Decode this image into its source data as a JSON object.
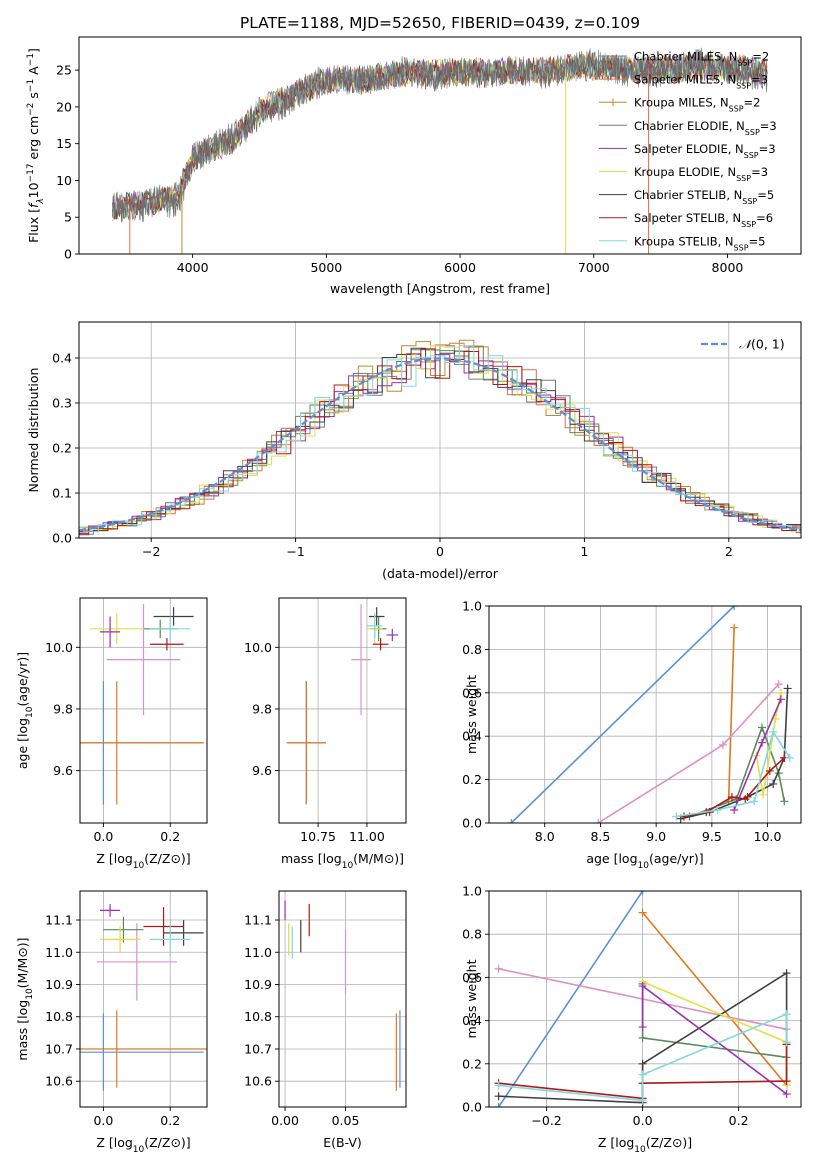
{
  "figure_title": "PLATE=1188, MJD=52650, FIBERID=0439, z=0.109",
  "legend_spectrum": [
    {
      "label": "Chabrier MILES, N",
      "sub": "SSP",
      "suffix": "=2",
      "color": "#808080",
      "marker": ""
    },
    {
      "label": "Salpeter MILES, N",
      "sub": "SSP",
      "suffix": "=3",
      "color": "#e07050",
      "marker": ""
    },
    {
      "label": "Kroupa MILES, N",
      "sub": "SSP",
      "suffix": "=2",
      "color": "#c08a30",
      "marker": "+"
    },
    {
      "label": "Chabrier ELODIE, N",
      "sub": "SSP",
      "suffix": "=3",
      "color": "#5a8a5a",
      "marker": ""
    },
    {
      "label": "Salpeter ELODIE, N",
      "sub": "SSP",
      "suffix": "=3",
      "color": "#9a30b0",
      "marker": ""
    },
    {
      "label": "Kroupa ELODIE, N",
      "sub": "SSP",
      "suffix": "=3",
      "color": "#e0e040",
      "marker": ""
    },
    {
      "label": "Chabrier STELIB, N",
      "sub": "SSP",
      "suffix": "=5",
      "color": "#404040",
      "marker": ""
    },
    {
      "label": "Salpeter STELIB, N",
      "sub": "SSP",
      "suffix": "=6",
      "color": "#b01818",
      "marker": ""
    },
    {
      "label": "Kroupa STELIB, N",
      "sub": "SSP",
      "suffix": "=5",
      "color": "#80d8e0",
      "marker": ""
    }
  ],
  "legend_hist": {
    "label": "N(0,1)",
    "color": "#5b8fd9"
  },
  "chart_data": [
    {
      "id": "spectrum",
      "type": "line",
      "title": "PLATE=1188, MJD=52650, FIBERID=0439, z=0.109",
      "xlabel": "wavelength [Angstrom, rest frame]",
      "ylabel": "Flux [f_λ 10^-17 erg cm^-2 s^-1 A^-1]",
      "xlim": [
        3150,
        8550
      ],
      "ylim": [
        0,
        29.5
      ],
      "xticks": [
        4000,
        5000,
        6000,
        7000,
        8000
      ],
      "yticks": [
        0,
        5,
        10,
        15,
        20,
        25
      ],
      "grid": false,
      "legend_position": "right",
      "spectrum_knots": [
        [
          3400,
          6.5
        ],
        [
          3600,
          6.2
        ],
        [
          3750,
          7.5
        ],
        [
          3900,
          6.5
        ],
        [
          4000,
          13
        ],
        [
          4200,
          15
        ],
        [
          4400,
          17
        ],
        [
          4500,
          19
        ],
        [
          4700,
          20.5
        ],
        [
          4800,
          22
        ],
        [
          5000,
          24
        ],
        [
          5200,
          23.5
        ],
        [
          5400,
          24
        ],
        [
          5600,
          25
        ],
        [
          5800,
          24
        ],
        [
          6000,
          25
        ],
        [
          6200,
          24.5
        ],
        [
          6400,
          25
        ],
        [
          6600,
          24.5
        ],
        [
          6800,
          25
        ],
        [
          7000,
          26
        ],
        [
          7200,
          25
        ],
        [
          7400,
          24.5
        ],
        [
          7600,
          25
        ],
        [
          7800,
          26
        ],
        [
          8000,
          25
        ],
        [
          8300,
          24
        ]
      ],
      "model_knots": [
        [
          3400,
          6.3
        ],
        [
          3500,
          6.5
        ],
        [
          3650,
          6.9
        ],
        [
          3800,
          7.3
        ],
        [
          3900,
          8.5
        ],
        [
          4000,
          13
        ],
        [
          4300,
          15.5
        ],
        [
          4500,
          19.5
        ],
        [
          4800,
          22
        ],
        [
          5000,
          23.5
        ],
        [
          5300,
          23.8
        ],
        [
          5600,
          24.6
        ],
        [
          5900,
          24.6
        ],
        [
          6200,
          24.8
        ],
        [
          6500,
          24.8
        ],
        [
          6800,
          25.2
        ],
        [
          7000,
          25.5
        ],
        [
          7300,
          25.1
        ],
        [
          7600,
          25.2
        ],
        [
          8000,
          25.4
        ],
        [
          8300,
          24.8
        ]
      ],
      "dropouts": [
        {
          "x": 3530,
          "color": "#e07050"
        },
        {
          "x": 3920,
          "color": "#c08a30"
        },
        {
          "x": 6790,
          "color": "#e0e040"
        },
        {
          "x": 7410,
          "color": "#e07050"
        }
      ]
    },
    {
      "id": "residual_hist",
      "type": "step",
      "xlabel": "(data-model)/error",
      "ylabel": "Normed distribution",
      "xlim": [
        -2.5,
        2.5
      ],
      "ylim": [
        0,
        0.48
      ],
      "xticks": [
        -2,
        -1,
        0,
        1,
        2
      ],
      "yticks": [
        0.0,
        0.1,
        0.2,
        0.3,
        0.4
      ],
      "grid": true,
      "legend_position": "upper right",
      "bin_width": 0.1,
      "reference_curve": "N(0,1)"
    },
    {
      "id": "age_vs_Z",
      "type": "errorbar",
      "xlabel": "Z [log10(Z/Z⊙)]",
      "ylabel": "age [log10(age/yr)]",
      "xlim": [
        -0.07,
        0.31
      ],
      "ylim": [
        9.43,
        10.16
      ],
      "xticks": [
        0.0,
        0.2
      ],
      "yticks": [
        9.6,
        9.8,
        10.0
      ],
      "grid": true,
      "points": [
        {
          "x": 0.0,
          "y": 9.69,
          "xerr": 0.3,
          "yerr": 0.2,
          "color": "#5b8fd9"
        },
        {
          "x": 0.04,
          "y": 9.69,
          "xerr": 0.26,
          "yerr": 0.2,
          "color": "#e07820"
        },
        {
          "x": 0.17,
          "y": 10.06,
          "xerr": 0.05,
          "yerr": 0.03,
          "color": "#5a8a5a"
        },
        {
          "x": 0.12,
          "y": 9.96,
          "xerr": 0.11,
          "yerr": 0.18,
          "color": "#e090c0"
        },
        {
          "x": 0.21,
          "y": 10.1,
          "xerr": 0.06,
          "yerr": 0.03,
          "color": "#404040"
        },
        {
          "x": 0.04,
          "y": 10.06,
          "xerr": 0.08,
          "yerr": 0.05,
          "color": "#e0e040"
        },
        {
          "x": 0.02,
          "y": 10.05,
          "xerr": 0.03,
          "yerr": 0.05,
          "color": "#9a30b0"
        },
        {
          "x": 0.19,
          "y": 10.01,
          "xerr": 0.05,
          "yerr": 0.02,
          "color": "#b01818"
        },
        {
          "x": 0.2,
          "y": 10.06,
          "xerr": 0.06,
          "yerr": 0.04,
          "color": "#80d8e0"
        }
      ]
    },
    {
      "id": "age_vs_mass",
      "type": "errorbar",
      "xlabel": "mass [log10(M/M⊙)]",
      "ylabel": "",
      "xlim": [
        10.55,
        11.2
      ],
      "ylim": [
        9.43,
        10.16
      ],
      "xticks": [
        10.75,
        11.0
      ],
      "yticks": [
        9.6,
        9.8,
        10.0
      ],
      "grid": true,
      "points": [
        {
          "x": 10.69,
          "y": 9.69,
          "xerr": 0.1,
          "yerr": 0.2,
          "color": "#5b8fd9"
        },
        {
          "x": 10.69,
          "y": 9.69,
          "xerr": 0.1,
          "yerr": 0.2,
          "color": "#e07820"
        },
        {
          "x": 10.97,
          "y": 9.96,
          "xerr": 0.05,
          "yerr": 0.18,
          "color": "#e090c0"
        },
        {
          "x": 11.06,
          "y": 10.06,
          "xerr": 0.04,
          "yerr": 0.04,
          "color": "#5a8a5a"
        },
        {
          "x": 11.05,
          "y": 10.1,
          "xerr": 0.04,
          "yerr": 0.03,
          "color": "#404040"
        },
        {
          "x": 11.04,
          "y": 10.06,
          "xerr": 0.04,
          "yerr": 0.05,
          "color": "#e0e040"
        },
        {
          "x": 11.13,
          "y": 10.04,
          "xerr": 0.03,
          "yerr": 0.02,
          "color": "#9a30b0"
        },
        {
          "x": 11.07,
          "y": 10.01,
          "xerr": 0.04,
          "yerr": 0.02,
          "color": "#b01818"
        },
        {
          "x": 11.04,
          "y": 10.07,
          "xerr": 0.04,
          "yerr": 0.04,
          "color": "#80d8e0"
        }
      ]
    },
    {
      "id": "mass_weight_vs_age",
      "type": "line",
      "xlabel": "age [log10(age/yr)]",
      "ylabel": "mass weight",
      "xlim": [
        7.5,
        10.3
      ],
      "ylim": [
        0,
        1
      ],
      "xticks": [
        8.0,
        8.5,
        9.0,
        9.5,
        10.0
      ],
      "yticks": [
        0.0,
        0.2,
        0.4,
        0.6,
        0.8,
        1.0
      ],
      "grid": true,
      "series": [
        {
          "color": "#5b8fd9",
          "x": [
            7.7,
            9.7
          ],
          "y": [
            0.0,
            1.0
          ]
        },
        {
          "color": "#e07820",
          "x": [
            9.65,
            9.7
          ],
          "y": [
            0.1,
            0.9
          ]
        },
        {
          "color": "#e090c0",
          "x": [
            8.48,
            9.6,
            10.1
          ],
          "y": [
            0.0,
            0.36,
            0.64
          ]
        },
        {
          "color": "#5a8a5a",
          "x": [
            9.3,
            9.72,
            9.95,
            10.1,
            10.15
          ],
          "y": [
            0.03,
            0.11,
            0.44,
            0.23,
            0.1
          ]
        },
        {
          "color": "#404040",
          "x": [
            9.22,
            9.48,
            9.82,
            10.05,
            10.15,
            10.18
          ],
          "y": [
            0.02,
            0.05,
            0.12,
            0.18,
            0.3,
            0.62
          ]
        },
        {
          "color": "#e0e040",
          "x": [
            9.9,
            9.96,
            10.07,
            10.12
          ],
          "y": [
            0.31,
            0.13,
            0.48,
            0.6
          ]
        },
        {
          "color": "#9a30b0",
          "x": [
            9.7,
            9.95,
            10.12
          ],
          "y": [
            0.06,
            0.37,
            0.57
          ]
        },
        {
          "color": "#b01818",
          "x": [
            9.25,
            9.45,
            9.68,
            9.8,
            10.02,
            10.15
          ],
          "y": [
            0.03,
            0.05,
            0.12,
            0.11,
            0.24,
            0.3
          ]
        },
        {
          "color": "#80d8e0",
          "x": [
            9.18,
            9.55,
            9.88,
            10.05,
            10.2
          ],
          "y": [
            0.03,
            0.06,
            0.1,
            0.42,
            0.3
          ]
        }
      ]
    },
    {
      "id": "mass_vs_Z",
      "type": "errorbar",
      "xlabel": "Z [log10(Z/Z⊙)]",
      "ylabel": "mass [log10(M/M⊙)]",
      "xlim": [
        -0.07,
        0.31
      ],
      "ylim": [
        10.52,
        11.19
      ],
      "xticks": [
        0.0,
        0.2
      ],
      "yticks": [
        10.6,
        10.7,
        10.8,
        10.9,
        11.0,
        11.1
      ],
      "grid": true,
      "points": [
        {
          "x": 0.0,
          "y": 10.69,
          "xerr": 0.3,
          "yerr": 0.12,
          "color": "#5b8fd9"
        },
        {
          "x": 0.04,
          "y": 10.7,
          "xerr": 0.27,
          "yerr": 0.12,
          "color": "#e07820"
        },
        {
          "x": 0.02,
          "y": 11.13,
          "xerr": 0.03,
          "yerr": 0.02,
          "color": "#9a30b0"
        },
        {
          "x": 0.1,
          "y": 10.97,
          "xerr": 0.12,
          "yerr": 0.12,
          "color": "#e090c0"
        },
        {
          "x": 0.06,
          "y": 11.07,
          "xerr": 0.06,
          "yerr": 0.04,
          "color": "#5a8a5a"
        },
        {
          "x": 0.05,
          "y": 11.04,
          "xerr": 0.06,
          "yerr": 0.04,
          "color": "#e0e040"
        },
        {
          "x": 0.24,
          "y": 11.06,
          "xerr": 0.06,
          "yerr": 0.04,
          "color": "#404040"
        },
        {
          "x": 0.18,
          "y": 11.08,
          "xerr": 0.06,
          "yerr": 0.06,
          "color": "#b01818"
        },
        {
          "x": 0.2,
          "y": 11.04,
          "xerr": 0.06,
          "yerr": 0.05,
          "color": "#80d8e0"
        }
      ]
    },
    {
      "id": "mass_vs_ebv",
      "type": "errorbar",
      "xlabel": "E(B-V)",
      "ylabel": "",
      "xlim": [
        -0.005,
        0.1
      ],
      "ylim": [
        10.52,
        11.19
      ],
      "xticks": [
        0.0,
        0.05
      ],
      "yticks": [
        10.6,
        10.7,
        10.8,
        10.9,
        11.0,
        11.1
      ],
      "grid": true,
      "points": [
        {
          "x": 0.095,
          "y": 10.7,
          "xerr": 0,
          "yerr": 0.12,
          "color": "#5b8fd9"
        },
        {
          "x": 0.092,
          "y": 10.69,
          "xerr": 0,
          "yerr": 0.12,
          "color": "#e07820"
        },
        {
          "x": 0.05,
          "y": 10.97,
          "xerr": 0,
          "yerr": 0.1,
          "color": "#e090c0"
        },
        {
          "x": 0.0,
          "y": 11.13,
          "xerr": 0,
          "yerr": 0.03,
          "color": "#9a30b0"
        },
        {
          "x": 0.02,
          "y": 11.1,
          "xerr": 0,
          "yerr": 0.05,
          "color": "#b01818"
        },
        {
          "x": 0.013,
          "y": 11.05,
          "xerr": 0,
          "yerr": 0.05,
          "color": "#404040"
        },
        {
          "x": 0.003,
          "y": 11.04,
          "xerr": 0,
          "yerr": 0.05,
          "color": "#e0e040"
        },
        {
          "x": 0.006,
          "y": 11.03,
          "xerr": 0,
          "yerr": 0.05,
          "color": "#80d8e0"
        }
      ]
    },
    {
      "id": "mass_weight_vs_Z",
      "type": "line",
      "xlabel": "Z [log10(Z/Z⊙)]",
      "ylabel": "mass weight",
      "xlim": [
        -0.32,
        0.33
      ],
      "ylim": [
        0,
        1
      ],
      "xticks": [
        -0.2,
        0.0,
        0.2
      ],
      "yticks": [
        0.0,
        0.2,
        0.4,
        0.6,
        0.8,
        1.0
      ],
      "grid": true,
      "series": [
        {
          "color": "#5b8fd9",
          "x": [
            -0.3,
            0.0
          ],
          "y": [
            0.0,
            1.0
          ]
        },
        {
          "color": "#e07820",
          "x": [
            0.0,
            0.3
          ],
          "y": [
            0.9,
            0.1
          ]
        },
        {
          "color": "#e090c0",
          "x": [
            -0.3,
            0.3
          ],
          "y": [
            0.64,
            0.36
          ]
        },
        {
          "color": "#5a8a5a",
          "x": [
            0.0,
            0.0,
            0.3,
            0.3
          ],
          "y": [
            0.57,
            0.32,
            0.23,
            0.1
          ]
        },
        {
          "color": "#404040",
          "x": [
            -0.3,
            0.0,
            0.0,
            0.3,
            0.3
          ],
          "y": [
            0.05,
            0.02,
            0.2,
            0.62,
            0.12
          ]
        },
        {
          "color": "#e0e040",
          "x": [
            0.0,
            0.3,
            0.3
          ],
          "y": [
            0.58,
            0.3,
            0.1
          ]
        },
        {
          "color": "#9a30b0",
          "x": [
            0.0,
            0.0,
            0.3
          ],
          "y": [
            0.37,
            0.56,
            0.06
          ]
        },
        {
          "color": "#b01818",
          "x": [
            -0.3,
            0.0,
            0.0,
            0.3,
            0.3
          ],
          "y": [
            0.11,
            0.04,
            0.11,
            0.12,
            0.29
          ]
        },
        {
          "color": "#80d8e0",
          "x": [
            -0.3,
            0.0,
            0.0,
            0.3,
            0.3
          ],
          "y": [
            0.1,
            0.03,
            0.15,
            0.43,
            0.3
          ]
        }
      ]
    }
  ]
}
